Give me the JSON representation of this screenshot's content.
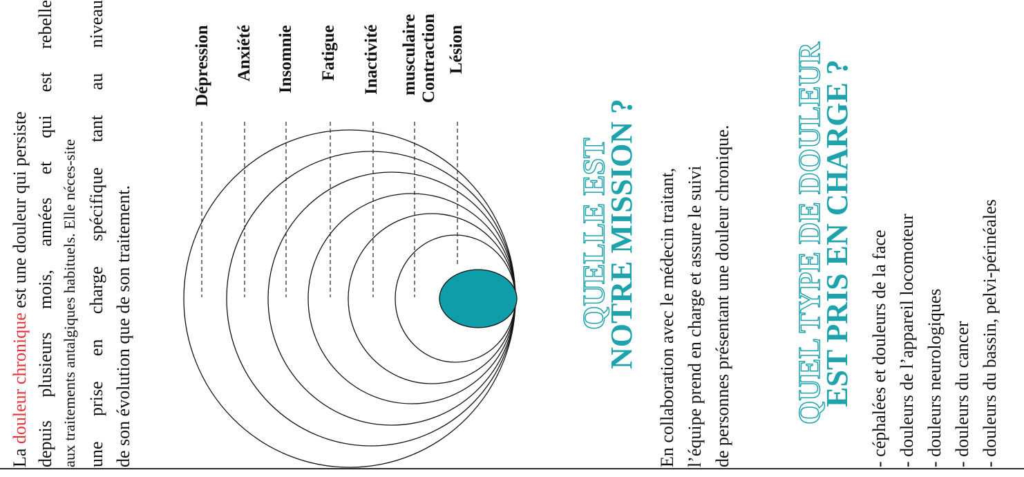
{
  "intro": {
    "line1_prefix": "La ",
    "line1_highlight": "douleur chronique",
    "line1_suffix": " est une douleur qui persiste",
    "line2": "depuis plusieurs mois, années et qui est rebelle",
    "line3": "aux traitements antalgiques habituels. Elle néces-site",
    "line4": "une prise en charge spécifique tant au niveau",
    "line5": "de son évolution que de son traitement."
  },
  "diagram": {
    "labels": [
      "Dépression",
      "Anxiété",
      "Insomnie",
      "Fatigue",
      "Inactivité",
      "Contraction musculaire",
      "Lésion"
    ],
    "contraction_line1": "Contraction",
    "contraction_line2": "musculaire",
    "core_color": "#0f9daa"
  },
  "mission": {
    "heading_line1": "QUELLE EST",
    "heading_line2": "NOTRE MISSION ?",
    "line1": "En collaboration avec le médecin traitant,",
    "line2": "l’équipe prend en charge et assure le suivi",
    "line3": "de personnes présentant une douleur chronique."
  },
  "types": {
    "heading_line1": "QUEL TYPE DE DOULEUR",
    "heading_line2": "EST PRIS EN CHARGE ?",
    "items": [
      "- céphalées et douleurs de la face",
      "- douleurs de l’appareil locomoteur",
      "- douleurs neurologiques",
      "- douleurs du cancer",
      "- douleurs du bassin, pelvi-périnéales"
    ]
  },
  "colors": {
    "accent": "#1ea3ad",
    "highlight": "#e8303a"
  }
}
